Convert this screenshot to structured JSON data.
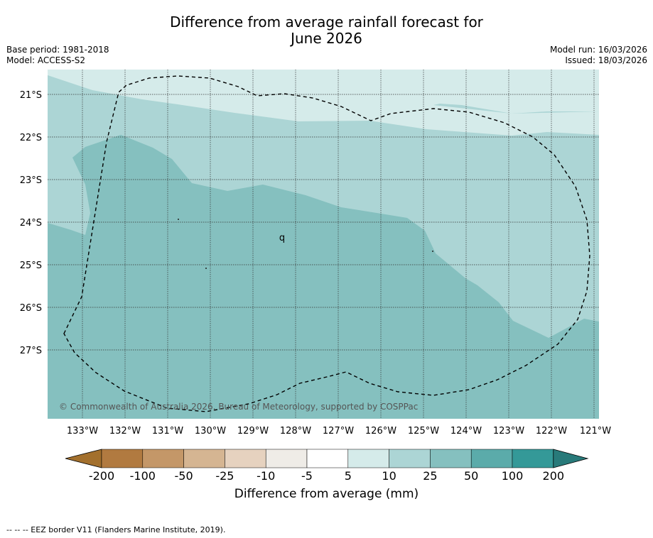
{
  "title_line1": "Difference from average rainfall forecast for",
  "title_line2": "June 2026",
  "meta_left": [
    "Base period: 1981-2018",
    "Model: ACCESS-S2"
  ],
  "meta_right": [
    "Model run: 16/03/2026",
    "Issued: 18/03/2026"
  ],
  "copyright": "© Commonwealth of Australia 2026, Bureau of Meteorology, supported by COSPPac",
  "lat_labels": [
    "21°S",
    "22°S",
    "23°S",
    "24°S",
    "25°S",
    "26°S",
    "27°S"
  ],
  "lon_labels": [
    "133°W",
    "132°W",
    "131°W",
    "130°W",
    "129°W",
    "128°W",
    "127°W",
    "126°W",
    "125°W",
    "124°W",
    "123°W",
    "122°W",
    "121°W"
  ],
  "island_label": "q",
  "colorbar": {
    "labels": [
      "-200",
      "-100",
      "-50",
      "-25",
      "-10",
      "-5",
      "5",
      "10",
      "25",
      "50",
      "100",
      "200"
    ],
    "colors": [
      "#a3702d",
      "#b17a40",
      "#c49768",
      "#d5b592",
      "#e6d2bf",
      "#efece7",
      "#ffffff",
      "#d5ebea",
      "#acd5d5",
      "#85c0bf",
      "#5babaa",
      "#349998",
      "#287a7a"
    ],
    "title": "Difference from average (mm)"
  },
  "footnote": "--  --  -- EEZ border V11 (Flanders Marine Institute, 2019)."
}
